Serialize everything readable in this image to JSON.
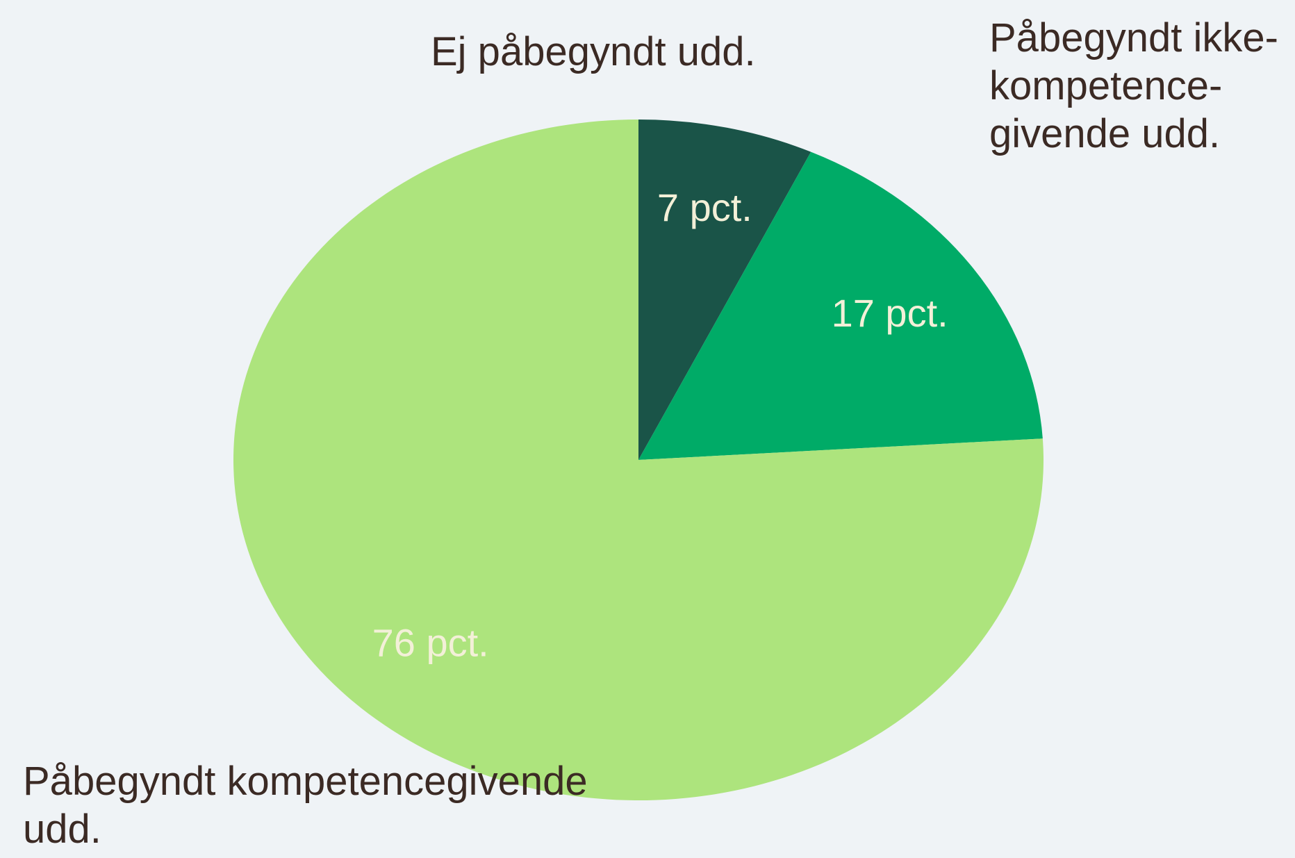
{
  "chart_data": {
    "type": "pie",
    "categories": [
      "Ej påbegyndt udd.",
      "Påbegyndt ikke-kompetence­givende udd.",
      "Påbegyndt kompetencegivende udd."
    ],
    "values": [
      7,
      17,
      76
    ],
    "value_labels": [
      "7 pct.",
      "17 pct.",
      "76 pct."
    ],
    "colors": [
      "#1a5448",
      "#00ab67",
      "#ade47d"
    ]
  }
}
